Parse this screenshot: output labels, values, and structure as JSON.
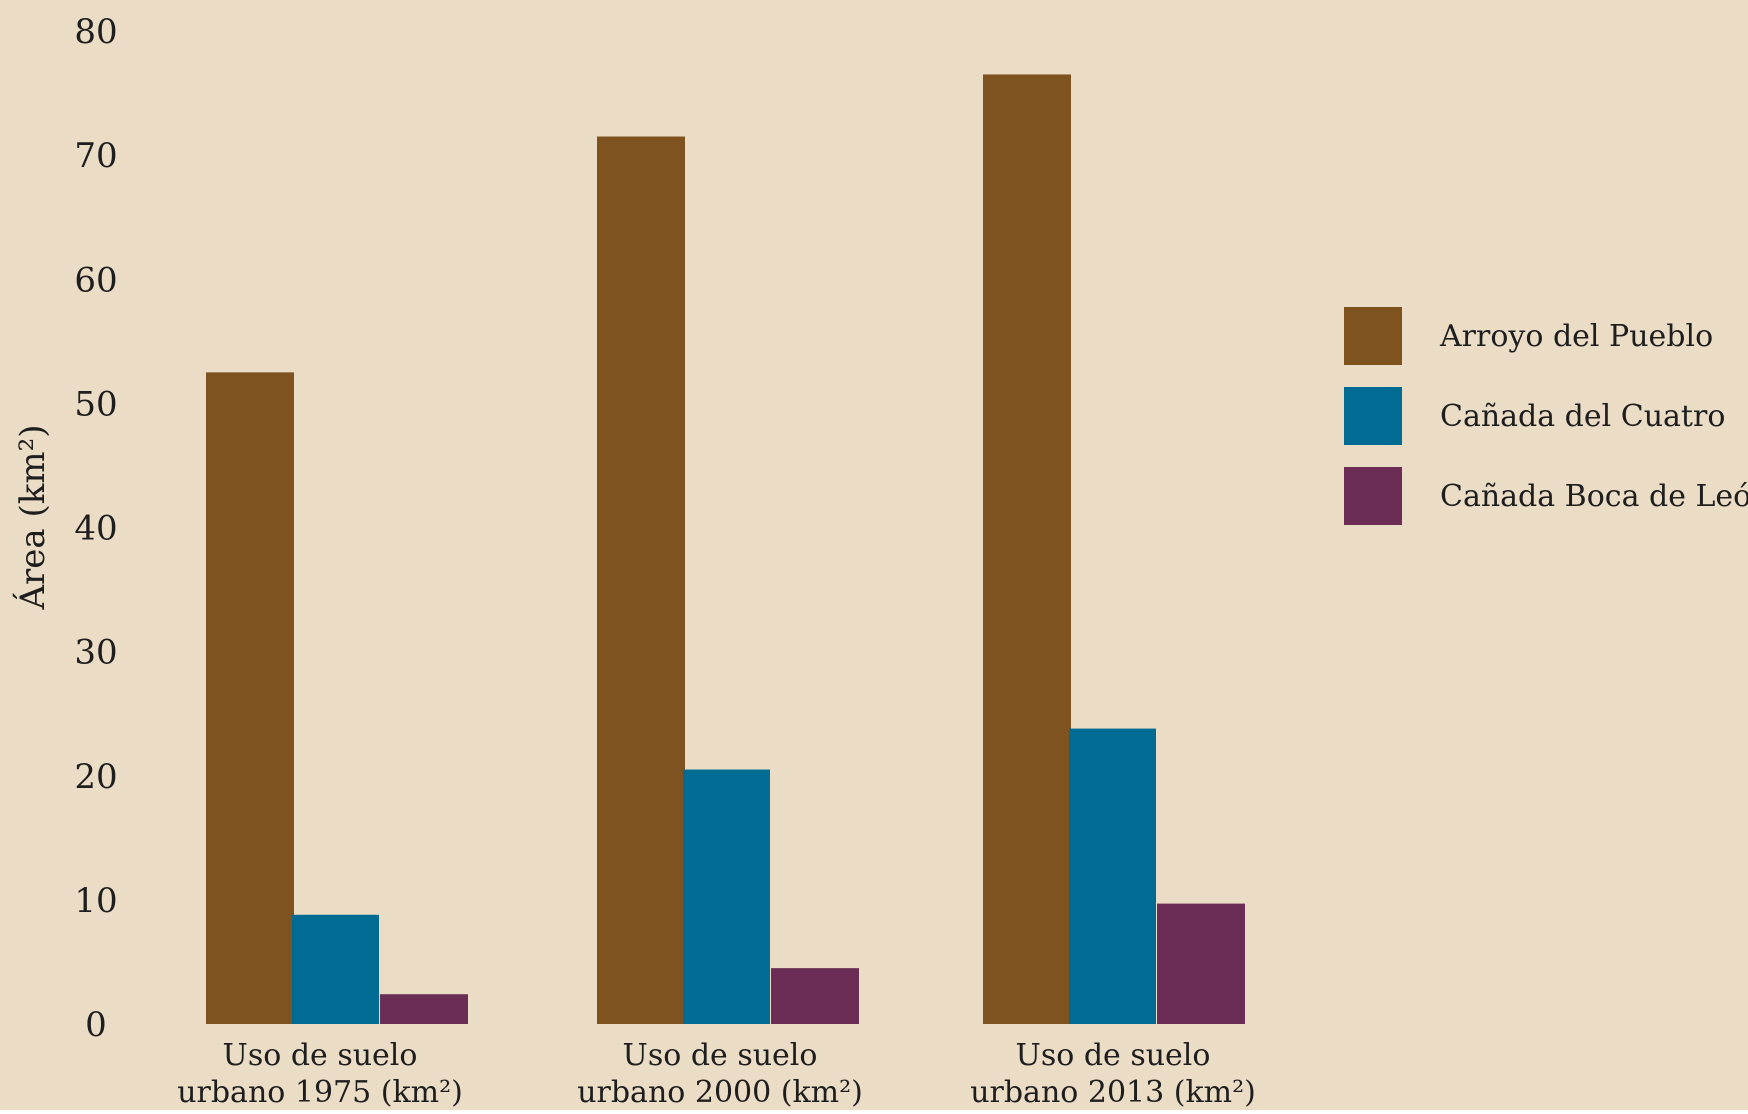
{
  "chart_data": {
    "type": "bar",
    "title": "",
    "ylabel": "Área (km²)",
    "xlabel": "",
    "ylim": [
      0,
      80
    ],
    "yticks": [
      0,
      10,
      20,
      30,
      40,
      50,
      60,
      70,
      80
    ],
    "grid": false,
    "legend_position": "right",
    "categories": [
      [
        "Uso de suelo",
        "urbano 1975 (km²)"
      ],
      [
        "Uso de suelo",
        "urbano 2000 (km²)"
      ],
      [
        "Uso de suelo",
        "urbano 2013 (km²)"
      ]
    ],
    "series": [
      {
        "name": "Arroyo del Pueblo",
        "color": "#7f5320",
        "values": [
          52.5,
          71.5,
          76.5
        ]
      },
      {
        "name": "Cañada del Cuatro",
        "color": "#006b93",
        "values": [
          8.8,
          20.5,
          23.8
        ]
      },
      {
        "name": "Cañada Boca de León",
        "color": "#6b2d55",
        "values": [
          2.4,
          4.5,
          9.7
        ]
      }
    ]
  },
  "colors": {
    "background": "#ebdcc6",
    "text": "#1e1e1e"
  }
}
